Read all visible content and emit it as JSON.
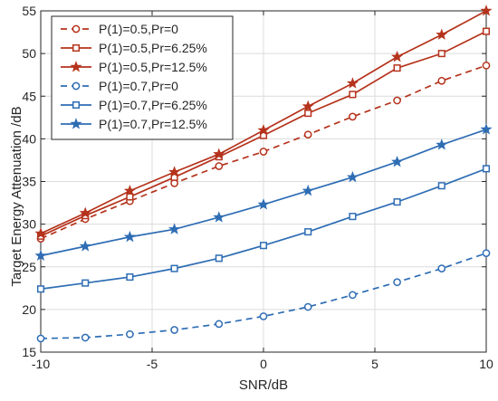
{
  "chart_data": {
    "type": "line",
    "title": "",
    "xlabel": "SNR/dB",
    "ylabel": "Target Energy Attenuation /dB",
    "xlim": [
      -10,
      10
    ],
    "ylim": [
      15,
      55
    ],
    "xticks": [
      -10,
      -5,
      0,
      5,
      10
    ],
    "yticks": [
      15,
      20,
      25,
      30,
      35,
      40,
      45,
      50,
      55
    ],
    "grid": true,
    "legend_position": "top-left",
    "x": [
      -10,
      -8,
      -6,
      -4,
      -2,
      0,
      2,
      4,
      6,
      8,
      10
    ],
    "series": [
      {
        "name": "P(1)=0.5,Pr=0",
        "color": "#b5331c",
        "line_style": "dashed",
        "marker": "circle",
        "values": [
          28.3,
          30.6,
          32.7,
          34.8,
          36.8,
          38.5,
          40.5,
          42.6,
          44.5,
          46.8,
          48.6
        ]
      },
      {
        "name": "P(1)=0.5,Pr=6.25%",
        "color": "#b5331c",
        "line_style": "solid",
        "marker": "square",
        "values": [
          28.6,
          31.0,
          33.2,
          35.5,
          37.9,
          40.4,
          43.0,
          45.2,
          48.3,
          50.0,
          52.6
        ]
      },
      {
        "name": "P(1)=0.5,Pr=12.5%",
        "color": "#b5331c",
        "line_style": "solid",
        "marker": "star",
        "values": [
          28.9,
          31.3,
          33.9,
          36.1,
          38.2,
          41.0,
          43.8,
          46.5,
          49.6,
          52.2,
          55.0
        ]
      },
      {
        "name": "P(1)=0.7,Pr=0",
        "color": "#2e6db4",
        "line_style": "dashed",
        "marker": "circle",
        "values": [
          16.6,
          16.7,
          17.1,
          17.6,
          18.3,
          19.2,
          20.3,
          21.7,
          23.2,
          24.8,
          26.6
        ]
      },
      {
        "name": "P(1)=0.7,Pr=6.25%",
        "color": "#2e6db4",
        "line_style": "solid",
        "marker": "square",
        "values": [
          22.4,
          23.1,
          23.8,
          24.8,
          26.0,
          27.5,
          29.1,
          30.9,
          32.6,
          34.5,
          36.5
        ]
      },
      {
        "name": "P(1)=0.7,Pr=12.5%",
        "color": "#2e6db4",
        "line_style": "solid",
        "marker": "star",
        "values": [
          26.3,
          27.4,
          28.5,
          29.4,
          30.8,
          32.3,
          33.9,
          35.5,
          37.3,
          39.3,
          41.1
        ]
      }
    ]
  }
}
